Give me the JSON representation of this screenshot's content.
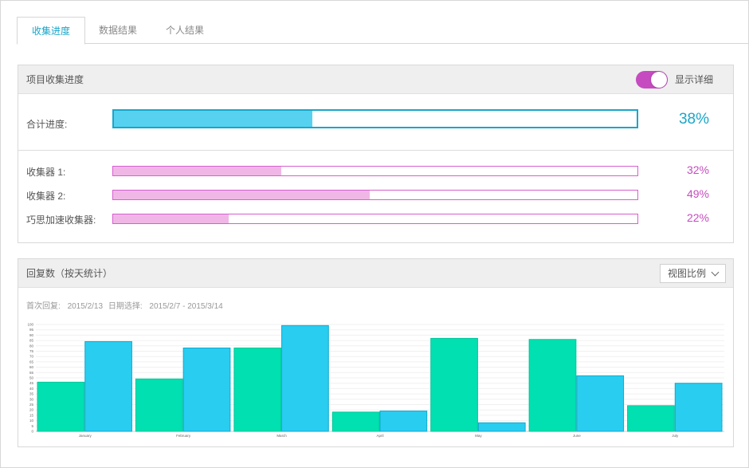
{
  "tabs": [
    "收集进度",
    "数据结果",
    "个人结果"
  ],
  "progress": {
    "title": "项目收集进度",
    "toggle_label": "显示详细",
    "toggle_on": true,
    "total": {
      "label": "合计进度:",
      "percent": 38,
      "percent_text": "38%"
    },
    "collectors": [
      {
        "label": "收集器 1:",
        "percent": 32,
        "percent_text": "32%"
      },
      {
        "label": "收集器 2:",
        "percent": 49,
        "percent_text": "49%"
      },
      {
        "label": "巧思加速收集器:",
        "percent": 22,
        "percent_text": "22%"
      }
    ],
    "colors": {
      "total_fill": "#56d2f0",
      "total_border": "#1aa6c9",
      "collector_fill": "#f0b7e6",
      "collector_border": "#d75fcf"
    }
  },
  "responses": {
    "title": "回复数（按天统计）",
    "select_value": "视图比例",
    "first_reply_label": "首次回复:",
    "first_reply_date": "2015/2/13",
    "date_range_label": "日期选择:",
    "date_range": "2015/2/7 - 2015/3/14"
  },
  "chart_data": {
    "type": "bar",
    "categories": [
      "January",
      "February",
      "March",
      "April",
      "May",
      "June",
      "July"
    ],
    "series": [
      {
        "values": [
          46,
          49,
          78,
          18,
          87,
          86,
          24
        ],
        "color": "#00e0b0"
      },
      {
        "values": [
          84,
          78,
          99,
          19,
          8,
          52,
          45
        ],
        "color": "#29cdf0"
      }
    ],
    "ylim": [
      0,
      100
    ],
    "yticks": [
      0,
      5,
      10,
      15,
      20,
      25,
      30,
      35,
      40,
      45,
      50,
      55,
      60,
      65,
      70,
      75,
      80,
      85,
      90,
      95,
      100
    ],
    "grid": true
  }
}
